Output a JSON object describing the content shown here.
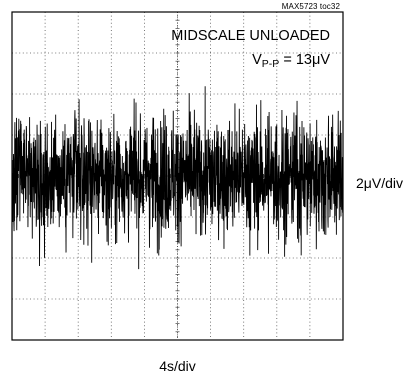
{
  "figure_id": "MAX5723 toc32",
  "chart_data": {
    "type": "line",
    "title": "MIDSCALE UNLOADED",
    "annotation": {
      "prefix": "V",
      "subscript": "P-P",
      "suffix": " = 13μV"
    },
    "xlabel": "4s/div",
    "ylabel": "2μV/div",
    "grid": true,
    "grid_divisions": {
      "x": 10,
      "y": 8
    },
    "x_unit": "s",
    "y_unit": "μV",
    "xlim": [
      0,
      40
    ],
    "ylim": [
      -8,
      8
    ],
    "peak_to_peak": 13,
    "series": [
      {
        "samples": 1600,
        "min": -6.5,
        "max": 6.5,
        "color": "#000000"
      }
    ]
  }
}
